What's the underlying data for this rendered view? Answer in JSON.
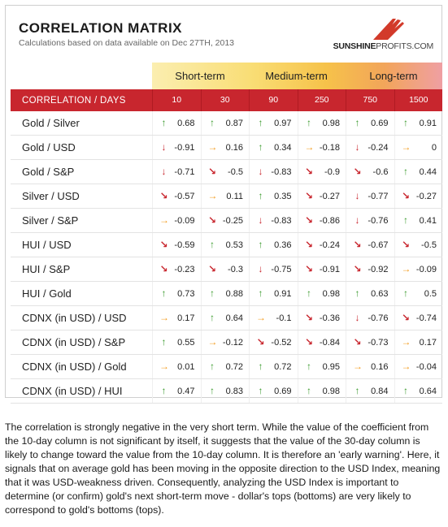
{
  "header": {
    "title": "CORRELATION MATRIX",
    "subtitle": "Calculations based on data available on Dec 27TH, 2013",
    "logo_main": "SUNSHINE",
    "logo_tail": "PROFITS.COM"
  },
  "terms": {
    "short": "Short-term",
    "medium": "Medium-term",
    "long": "Long-term"
  },
  "table": {
    "corner_label": "CORRELATION / DAYS",
    "columns": [
      "10",
      "30",
      "90",
      "250",
      "750",
      "1500"
    ],
    "rows": [
      {
        "label": "Gold / Silver",
        "cells": [
          {
            "v": "0.68",
            "a": "up"
          },
          {
            "v": "0.87",
            "a": "up"
          },
          {
            "v": "0.97",
            "a": "up"
          },
          {
            "v": "0.98",
            "a": "up"
          },
          {
            "v": "0.69",
            "a": "up"
          },
          {
            "v": "0.91",
            "a": "up"
          }
        ]
      },
      {
        "label": "Gold / USD",
        "cells": [
          {
            "v": "-0.91",
            "a": "down"
          },
          {
            "v": "0.16",
            "a": "right"
          },
          {
            "v": "0.34",
            "a": "up"
          },
          {
            "v": "-0.18",
            "a": "right"
          },
          {
            "v": "-0.24",
            "a": "down"
          },
          {
            "v": "0",
            "a": "right"
          }
        ]
      },
      {
        "label": "Gold / S&P",
        "cells": [
          {
            "v": "-0.71",
            "a": "down"
          },
          {
            "v": "-0.5",
            "a": "diag-down"
          },
          {
            "v": "-0.83",
            "a": "down"
          },
          {
            "v": "-0.9",
            "a": "diag-down"
          },
          {
            "v": "-0.6",
            "a": "diag-down"
          },
          {
            "v": "0.44",
            "a": "up"
          }
        ]
      },
      {
        "label": "Silver / USD",
        "cells": [
          {
            "v": "-0.57",
            "a": "diag-down"
          },
          {
            "v": "0.11",
            "a": "right"
          },
          {
            "v": "0.35",
            "a": "up"
          },
          {
            "v": "-0.27",
            "a": "diag-down"
          },
          {
            "v": "-0.77",
            "a": "down"
          },
          {
            "v": "-0.27",
            "a": "diag-down"
          }
        ]
      },
      {
        "label": "Silver / S&P",
        "cells": [
          {
            "v": "-0.09",
            "a": "right"
          },
          {
            "v": "-0.25",
            "a": "diag-down"
          },
          {
            "v": "-0.83",
            "a": "down"
          },
          {
            "v": "-0.86",
            "a": "diag-down"
          },
          {
            "v": "-0.76",
            "a": "down"
          },
          {
            "v": "0.41",
            "a": "up"
          }
        ]
      },
      {
        "label": "HUI / USD",
        "cells": [
          {
            "v": "-0.59",
            "a": "diag-down"
          },
          {
            "v": "0.53",
            "a": "up"
          },
          {
            "v": "0.36",
            "a": "up"
          },
          {
            "v": "-0.24",
            "a": "diag-down"
          },
          {
            "v": "-0.67",
            "a": "diag-down"
          },
          {
            "v": "-0.5",
            "a": "diag-down"
          }
        ]
      },
      {
        "label": "HUI / S&P",
        "cells": [
          {
            "v": "-0.23",
            "a": "diag-down"
          },
          {
            "v": "-0.3",
            "a": "diag-down"
          },
          {
            "v": "-0.75",
            "a": "down"
          },
          {
            "v": "-0.91",
            "a": "diag-down"
          },
          {
            "v": "-0.92",
            "a": "diag-down"
          },
          {
            "v": "-0.09",
            "a": "right"
          }
        ]
      },
      {
        "label": "HUI / Gold",
        "cells": [
          {
            "v": "0.73",
            "a": "up"
          },
          {
            "v": "0.88",
            "a": "up"
          },
          {
            "v": "0.91",
            "a": "up"
          },
          {
            "v": "0.98",
            "a": "up"
          },
          {
            "v": "0.63",
            "a": "up"
          },
          {
            "v": "0.5",
            "a": "up"
          }
        ]
      },
      {
        "label": "CDNX (in USD) / USD",
        "cells": [
          {
            "v": "0.17",
            "a": "right"
          },
          {
            "v": "0.64",
            "a": "up"
          },
          {
            "v": "-0.1",
            "a": "right"
          },
          {
            "v": "-0.36",
            "a": "diag-down"
          },
          {
            "v": "-0.76",
            "a": "down"
          },
          {
            "v": "-0.74",
            "a": "diag-down"
          }
        ]
      },
      {
        "label": "CDNX (in USD) / S&P",
        "cells": [
          {
            "v": "0.55",
            "a": "up"
          },
          {
            "v": "-0.12",
            "a": "right"
          },
          {
            "v": "-0.52",
            "a": "diag-down"
          },
          {
            "v": "-0.84",
            "a": "diag-down"
          },
          {
            "v": "-0.73",
            "a": "diag-down"
          },
          {
            "v": "0.17",
            "a": "right"
          }
        ]
      },
      {
        "label": "CDNX (in USD) / Gold",
        "cells": [
          {
            "v": "0.01",
            "a": "right"
          },
          {
            "v": "0.72",
            "a": "up"
          },
          {
            "v": "0.72",
            "a": "up"
          },
          {
            "v": "0.95",
            "a": "up"
          },
          {
            "v": "0.16",
            "a": "right"
          },
          {
            "v": "-0.04",
            "a": "right"
          }
        ]
      },
      {
        "label": "CDNX (in USD) / HUI",
        "cells": [
          {
            "v": "0.47",
            "a": "up"
          },
          {
            "v": "0.83",
            "a": "up"
          },
          {
            "v": "0.69",
            "a": "up"
          },
          {
            "v": "0.98",
            "a": "up"
          },
          {
            "v": "0.84",
            "a": "up"
          },
          {
            "v": "0.64",
            "a": "up"
          }
        ]
      }
    ]
  },
  "paragraph": "The correlation is strongly negative in the very short term. While the value of the coefficient from the 10-day column is not significant by itself, it suggests that the value of the 30-day column is likely to change toward the value from the 10-day column. It is therefore an 'early warning'. Here, it signals that on average gold has been moving in the opposite direction to the USD Index, meaning that it was USD-weakness driven. Consequently, analyzing the USD Index is important to determine (or confirm) gold's next short-term move - dollar's tops (bottoms) are very likely to correspond to gold's bottoms (tops).",
  "colors": {
    "header_red": "#c8262e",
    "up_green": "#3a9a2c",
    "down_red": "#c8262e",
    "flat_orange": "#f29a1c"
  },
  "icons": {
    "up": "arrow-up-icon",
    "down": "arrow-down-icon",
    "right": "arrow-right-icon",
    "diag-up": "arrow-up-right-icon",
    "diag-down": "arrow-down-right-icon"
  }
}
